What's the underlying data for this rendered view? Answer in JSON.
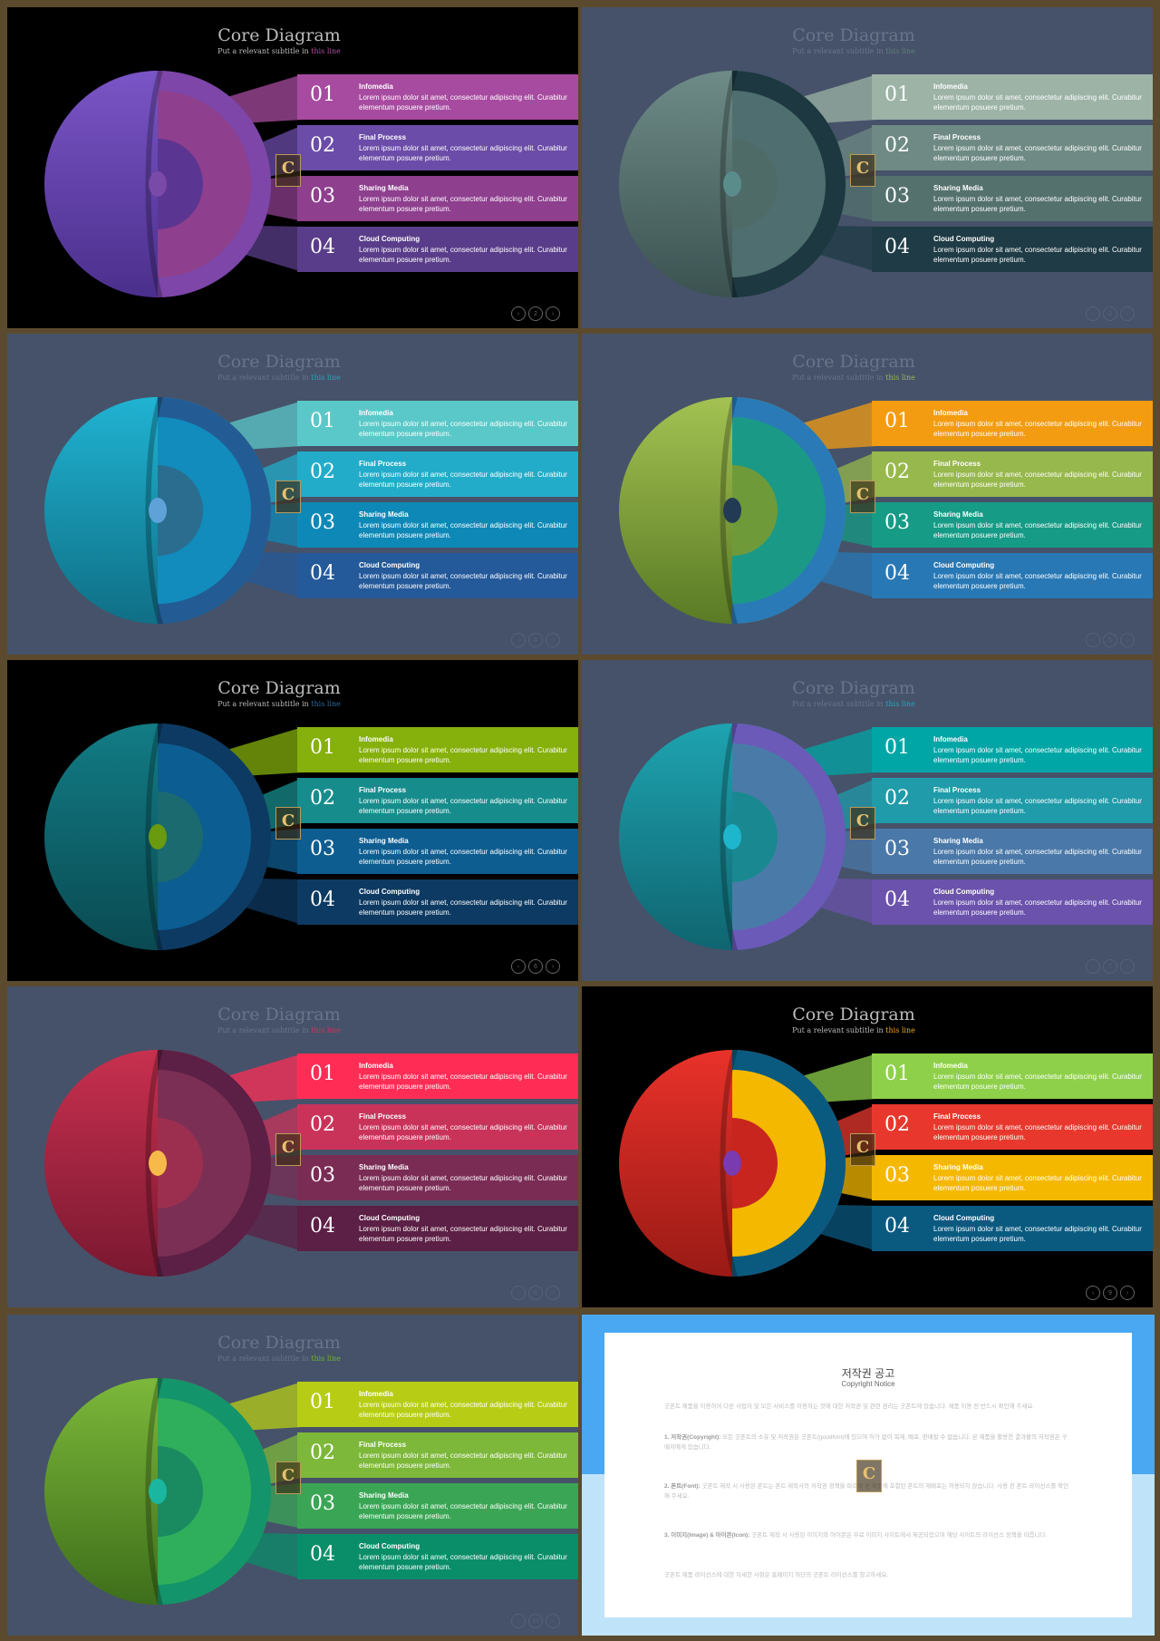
{
  "common": {
    "title": "Core Diagram",
    "subtitle_prefix": "Put a relevant subtitle in ",
    "subtitle_highlight": "this line",
    "logo_letter": "C",
    "items": [
      {
        "num": "01",
        "title": "Infomedia",
        "desc": "Lorem ipsum dolor sit amet, consectetur adipiscing elit. Curabitur elementum posuere pretium."
      },
      {
        "num": "02",
        "title": "Final Process",
        "desc": "Lorem ipsum dolor sit amet, consectetur adipiscing elit. Curabitur elementum posuere pretium."
      },
      {
        "num": "03",
        "title": "Sharing Media",
        "desc": "Lorem ipsum dolor sit amet, consectetur adipiscing elit. Curabitur elementum posuere pretium."
      },
      {
        "num": "04",
        "title": "Cloud Computing",
        "desc": "Lorem ipsum dolor sit amet, consectetur adipiscing elit. Curabitur elementum posuere pretium."
      }
    ],
    "pager_prev": "‹",
    "pager_next": "›"
  },
  "slides": [
    {
      "page": "2",
      "bg": "#000000",
      "title_color": "#bbbbbb",
      "highlight_color": "#b04fa0",
      "sphere": [
        "#7a55c6",
        "#4b2f8c"
      ],
      "layers": [
        "#7d46a8",
        "#8e3f8e",
        "#5b3592"
      ],
      "nucleus": "#7a4aa8",
      "bars": [
        "#a74ba0",
        "#6b4ca8",
        "#8e3f8e",
        "#5a3d8a"
      ]
    },
    {
      "page": "3",
      "bg": "#465269",
      "title_color": "#69748a",
      "highlight_color": "#5e7f79",
      "sphere": [
        "#6e8b87",
        "#3b5251"
      ],
      "layers": [
        "#1d3840",
        "#4f6e70",
        "#4e6b68"
      ],
      "nucleus": "#5a8c8c",
      "bars": [
        "#9cb3a6",
        "#6f8a84",
        "#54716e",
        "#1f3b45"
      ]
    },
    {
      "page": "4",
      "bg": "#465269",
      "title_color": "#69748a",
      "highlight_color": "#29a3b9",
      "sphere": [
        "#20b3d2",
        "#0f6f86"
      ],
      "layers": [
        "#235c94",
        "#118cbd",
        "#2b6d8e"
      ],
      "nucleus": "#5fa2d8",
      "bars": [
        "#5ac8c8",
        "#22acc9",
        "#0e89b7",
        "#24599a"
      ]
    },
    {
      "page": "5",
      "bg": "#465269",
      "title_color": "#69748a",
      "highlight_color": "#9bb74a",
      "sphere": [
        "#a3c252",
        "#5a7a25"
      ],
      "layers": [
        "#2a7ab8",
        "#1a9a86",
        "#6f9a3a"
      ],
      "nucleus": "#233a55",
      "bars": [
        "#f39c12",
        "#97b84c",
        "#169b86",
        "#2878b5"
      ]
    },
    {
      "page": "6",
      "bg": "#000000",
      "title_color": "#bbbbbb",
      "highlight_color": "#2c6aa0",
      "sphere": [
        "#127c85",
        "#0a4a52"
      ],
      "layers": [
        "#0d3a62",
        "#0c5d91",
        "#1a6a70"
      ],
      "nucleus": "#6a9a10",
      "bars": [
        "#86b00c",
        "#178c8c",
        "#0d5d91",
        "#0d3a62"
      ]
    },
    {
      "page": "7",
      "bg": "#465269",
      "title_color": "#69748a",
      "highlight_color": "#22a8b8",
      "sphere": [
        "#1ea3b0",
        "#0f6570"
      ],
      "layers": [
        "#6b5ab8",
        "#4a7ba8",
        "#1a8890"
      ],
      "nucleus": "#1eb6cc",
      "bars": [
        "#00a6a6",
        "#1f9ba9",
        "#4a78a8",
        "#6b52ac"
      ]
    },
    {
      "page": "8",
      "bg": "#465269",
      "title_color": "#69748a",
      "highlight_color": "#c43a5a",
      "sphere": [
        "#c8304f",
        "#7a1830"
      ],
      "layers": [
        "#5c1f45",
        "#7b2f55",
        "#9c2f4f"
      ],
      "nucleus": "#f7b94a",
      "bars": [
        "#ff2d55",
        "#c9335a",
        "#7a2c55",
        "#5c1f45"
      ]
    },
    {
      "page": "9",
      "bg": "#000000",
      "title_color": "#bbbbbb",
      "highlight_color": "#f5a623",
      "sphere": [
        "#e8322a",
        "#9a1a15"
      ],
      "layers": [
        "#0a5a80",
        "#f5b800",
        "#c8251f"
      ],
      "nucleus": "#7a3ab0",
      "bars": [
        "#8ed04a",
        "#e8382d",
        "#f5b800",
        "#0a5a80"
      ]
    },
    {
      "page": "10",
      "bg": "#465269",
      "title_color": "#69748a",
      "highlight_color": "#6ab43a",
      "sphere": [
        "#7cb83a",
        "#3e6e1a"
      ],
      "layers": [
        "#14946a",
        "#2fae5c",
        "#1a8a60"
      ],
      "nucleus": "#1ab6a0",
      "bars": [
        "#b7cd15",
        "#7db83a",
        "#3aa655",
        "#0a8e6a"
      ]
    }
  ],
  "notice": {
    "title": "저작권 공고",
    "subtitle": "Copyright Notice",
    "paragraphs": [
      {
        "lead": "",
        "text": "굿폰트 제품을 이용하여 다른 사업자 및 모든 서비스를 이용하는 것에 대한 저작권 및 관련 권리는 굿폰트에 있습니다. 제품 이용 전 반드시 확인해 주세요."
      },
      {
        "lead": "1. 저작권(Copyright): ",
        "text": "모든 굿폰트의 소유 및 저작권은 굿폰트(goodfont)에 있으며 허가 없이 복제, 배포, 판매할 수 없습니다. 본 제품을 활용한 결과물의 저작권은 구매자에게 있습니다."
      },
      {
        "lead": "2. 폰트(Font): ",
        "text": "굿폰트 제작 시 사용된 폰트는 폰트 제작사의 저작권 정책을 따르며 본 제품에 포함된 폰트의 재배포는 허용되지 않습니다. 사용 전 폰트 라이선스를 확인해 주세요."
      },
      {
        "lead": "3. 이미지(Image) & 아이콘(Icon): ",
        "text": "굿폰트 제작 시 사용된 이미지와 아이콘은 무료 이미지 사이트에서 제공되었으며 해당 사이트의 라이선스 정책을 따릅니다."
      },
      {
        "lead": "",
        "text": "굿폰트 제품 라이선스에 대한 자세한 사항은 홈페이지 하단의 굿폰트 라이선스를 참고하세요."
      }
    ]
  }
}
